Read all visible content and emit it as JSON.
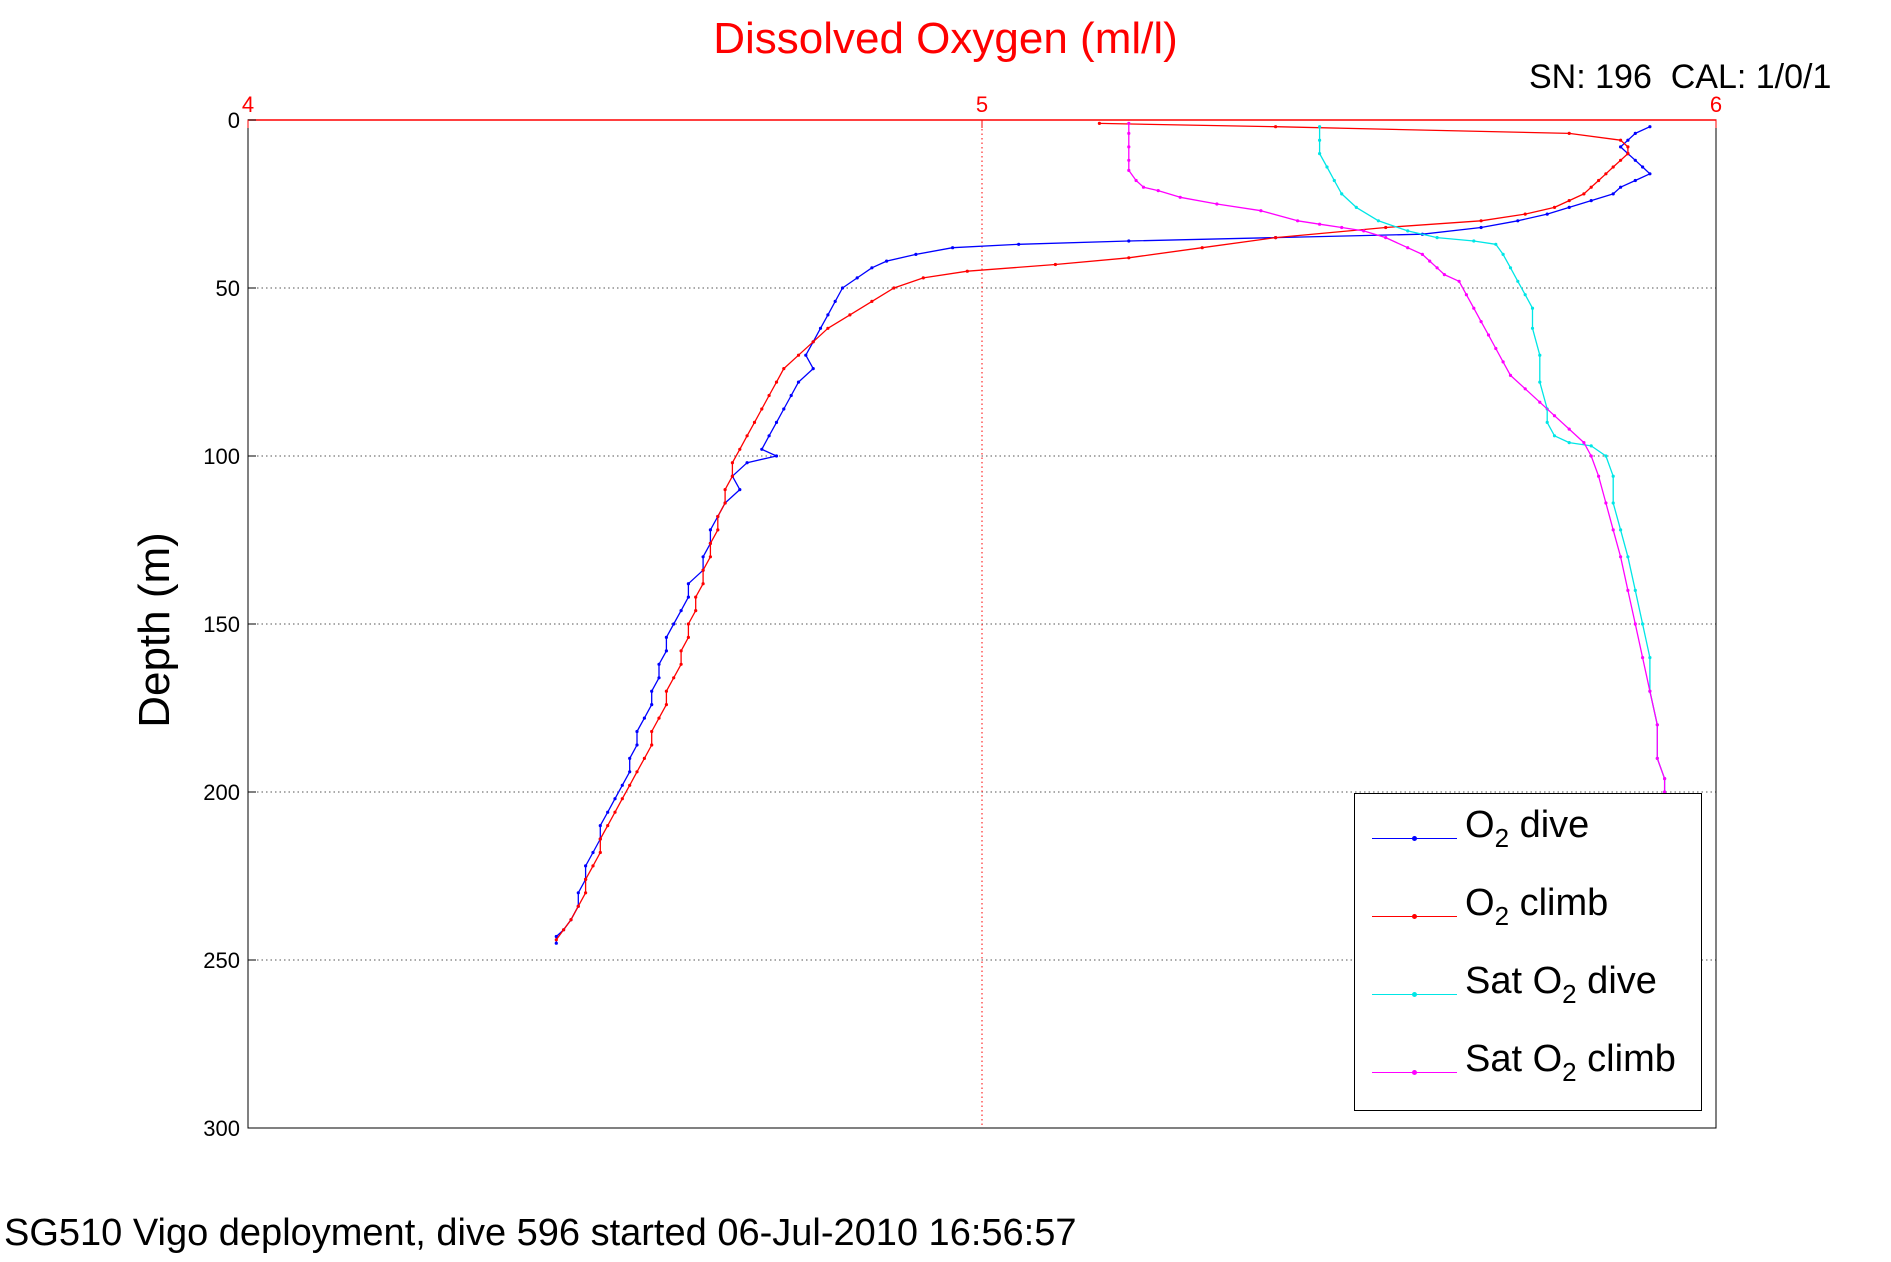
{
  "figure": {
    "title": "Dissolved Oxygen (ml/l)",
    "sn_cal": "SN: 196  CAL: 1/0/1",
    "footer": "SG510 Vigo deployment, dive 596 started 06-Jul-2010 16:56:57"
  },
  "chart_data": {
    "type": "line",
    "title": "Dissolved Oxygen (ml/l)",
    "xlabel": "Dissolved Oxygen (ml/l)",
    "ylabel": "Depth (m)",
    "x_axis_position": "top",
    "y_axis_reversed": true,
    "xlim": [
      4,
      6
    ],
    "ylim": [
      0,
      300
    ],
    "xticks": [
      "4",
      "5",
      "6"
    ],
    "xtick_values": [
      4,
      5,
      6
    ],
    "yticks": [
      "0",
      "50",
      "100",
      "150",
      "200",
      "250",
      "300"
    ],
    "ytick_values": [
      0,
      50,
      100,
      150,
      200,
      250,
      300
    ],
    "grid": true,
    "legend_position": "bottom-right",
    "colors": {
      "axis_x": "#ff0000",
      "axis_y": "#000000",
      "grid_x": "#ff0000",
      "grid_y": "#555555"
    },
    "series": [
      {
        "name": "O2 dive",
        "legend": {
          "pre": "O",
          "sub": "2",
          "post": " dive"
        },
        "color": "#0000ff",
        "points": [
          [
            5.91,
            2
          ],
          [
            5.89,
            4
          ],
          [
            5.88,
            6
          ],
          [
            5.87,
            8
          ],
          [
            5.88,
            10
          ],
          [
            5.89,
            12
          ],
          [
            5.9,
            14
          ],
          [
            5.91,
            16
          ],
          [
            5.89,
            18
          ],
          [
            5.87,
            20
          ],
          [
            5.86,
            22
          ],
          [
            5.83,
            24
          ],
          [
            5.8,
            26
          ],
          [
            5.77,
            28
          ],
          [
            5.73,
            30
          ],
          [
            5.68,
            32
          ],
          [
            5.6,
            34
          ],
          [
            5.4,
            35
          ],
          [
            5.2,
            36
          ],
          [
            5.05,
            37
          ],
          [
            4.96,
            38
          ],
          [
            4.91,
            40
          ],
          [
            4.87,
            42
          ],
          [
            4.85,
            44
          ],
          [
            4.83,
            47
          ],
          [
            4.81,
            50
          ],
          [
            4.8,
            54
          ],
          [
            4.79,
            58
          ],
          [
            4.78,
            62
          ],
          [
            4.77,
            66
          ],
          [
            4.76,
            70
          ],
          [
            4.77,
            74
          ],
          [
            4.75,
            78
          ],
          [
            4.74,
            82
          ],
          [
            4.73,
            86
          ],
          [
            4.72,
            90
          ],
          [
            4.71,
            94
          ],
          [
            4.7,
            98
          ],
          [
            4.72,
            100
          ],
          [
            4.68,
            102
          ],
          [
            4.66,
            106
          ],
          [
            4.67,
            110
          ],
          [
            4.65,
            114
          ],
          [
            4.64,
            118
          ],
          [
            4.63,
            122
          ],
          [
            4.63,
            126
          ],
          [
            4.62,
            130
          ],
          [
            4.62,
            134
          ],
          [
            4.6,
            138
          ],
          [
            4.6,
            142
          ],
          [
            4.59,
            146
          ],
          [
            4.58,
            150
          ],
          [
            4.57,
            154
          ],
          [
            4.57,
            158
          ],
          [
            4.56,
            162
          ],
          [
            4.56,
            166
          ],
          [
            4.55,
            170
          ],
          [
            4.55,
            174
          ],
          [
            4.54,
            178
          ],
          [
            4.53,
            182
          ],
          [
            4.53,
            186
          ],
          [
            4.52,
            190
          ],
          [
            4.52,
            194
          ],
          [
            4.51,
            198
          ],
          [
            4.5,
            202
          ],
          [
            4.49,
            206
          ],
          [
            4.48,
            210
          ],
          [
            4.48,
            214
          ],
          [
            4.47,
            218
          ],
          [
            4.46,
            222
          ],
          [
            4.46,
            226
          ],
          [
            4.45,
            230
          ],
          [
            4.45,
            234
          ],
          [
            4.44,
            238
          ],
          [
            4.43,
            241
          ],
          [
            4.42,
            243
          ],
          [
            4.42,
            245
          ]
        ]
      },
      {
        "name": "O2 climb",
        "legend": {
          "pre": "O",
          "sub": "2",
          "post": " climb"
        },
        "color": "#ff0000",
        "points": [
          [
            4.42,
            244
          ],
          [
            4.43,
            241
          ],
          [
            4.44,
            238
          ],
          [
            4.45,
            234
          ],
          [
            4.46,
            230
          ],
          [
            4.46,
            226
          ],
          [
            4.47,
            222
          ],
          [
            4.48,
            218
          ],
          [
            4.48,
            214
          ],
          [
            4.49,
            210
          ],
          [
            4.5,
            206
          ],
          [
            4.51,
            202
          ],
          [
            4.52,
            198
          ],
          [
            4.53,
            194
          ],
          [
            4.54,
            190
          ],
          [
            4.55,
            186
          ],
          [
            4.55,
            182
          ],
          [
            4.56,
            178
          ],
          [
            4.57,
            174
          ],
          [
            4.57,
            170
          ],
          [
            4.58,
            166
          ],
          [
            4.59,
            162
          ],
          [
            4.59,
            158
          ],
          [
            4.6,
            154
          ],
          [
            4.6,
            150
          ],
          [
            4.61,
            146
          ],
          [
            4.61,
            142
          ],
          [
            4.62,
            138
          ],
          [
            4.62,
            134
          ],
          [
            4.63,
            130
          ],
          [
            4.63,
            126
          ],
          [
            4.64,
            122
          ],
          [
            4.64,
            118
          ],
          [
            4.65,
            114
          ],
          [
            4.65,
            110
          ],
          [
            4.66,
            106
          ],
          [
            4.66,
            102
          ],
          [
            4.67,
            98
          ],
          [
            4.68,
            94
          ],
          [
            4.69,
            90
          ],
          [
            4.7,
            86
          ],
          [
            4.71,
            82
          ],
          [
            4.72,
            78
          ],
          [
            4.73,
            74
          ],
          [
            4.75,
            70
          ],
          [
            4.77,
            66
          ],
          [
            4.79,
            62
          ],
          [
            4.82,
            58
          ],
          [
            4.85,
            54
          ],
          [
            4.88,
            50
          ],
          [
            4.92,
            47
          ],
          [
            4.98,
            45
          ],
          [
            5.1,
            43
          ],
          [
            5.2,
            41
          ],
          [
            5.3,
            38
          ],
          [
            5.4,
            35
          ],
          [
            5.55,
            32
          ],
          [
            5.68,
            30
          ],
          [
            5.74,
            28
          ],
          [
            5.78,
            26
          ],
          [
            5.8,
            24
          ],
          [
            5.82,
            22
          ],
          [
            5.83,
            20
          ],
          [
            5.84,
            18
          ],
          [
            5.85,
            16
          ],
          [
            5.86,
            14
          ],
          [
            5.87,
            12
          ],
          [
            5.88,
            10
          ],
          [
            5.88,
            8
          ],
          [
            5.87,
            6
          ],
          [
            5.8,
            4
          ],
          [
            5.4,
            2
          ],
          [
            5.16,
            1
          ]
        ]
      },
      {
        "name": "Sat O2 dive",
        "legend": {
          "pre": "Sat O",
          "sub": "2",
          "post": " dive"
        },
        "color": "#00e6e6",
        "points": [
          [
            5.46,
            2
          ],
          [
            5.46,
            6
          ],
          [
            5.46,
            10
          ],
          [
            5.47,
            14
          ],
          [
            5.48,
            18
          ],
          [
            5.49,
            22
          ],
          [
            5.51,
            26
          ],
          [
            5.54,
            30
          ],
          [
            5.58,
            33
          ],
          [
            5.62,
            35
          ],
          [
            5.67,
            36
          ],
          [
            5.7,
            37
          ],
          [
            5.71,
            40
          ],
          [
            5.72,
            44
          ],
          [
            5.73,
            48
          ],
          [
            5.74,
            52
          ],
          [
            5.75,
            56
          ],
          [
            5.75,
            62
          ],
          [
            5.76,
            70
          ],
          [
            5.76,
            78
          ],
          [
            5.77,
            86
          ],
          [
            5.77,
            90
          ],
          [
            5.78,
            94
          ],
          [
            5.8,
            96
          ],
          [
            5.83,
            97
          ],
          [
            5.85,
            100
          ],
          [
            5.86,
            106
          ],
          [
            5.86,
            114
          ],
          [
            5.87,
            122
          ],
          [
            5.88,
            130
          ],
          [
            5.89,
            140
          ],
          [
            5.9,
            150
          ],
          [
            5.91,
            160
          ],
          [
            5.91,
            170
          ],
          [
            5.92,
            180
          ],
          [
            5.92,
            190
          ],
          [
            5.93,
            196
          ],
          [
            5.93,
            200
          ]
        ]
      },
      {
        "name": "Sat O2 climb",
        "legend": {
          "pre": "Sat O",
          "sub": "2",
          "post": " climb"
        },
        "color": "#ff00ff",
        "points": [
          [
            5.93,
            200
          ],
          [
            5.93,
            196
          ],
          [
            5.92,
            190
          ],
          [
            5.92,
            180
          ],
          [
            5.91,
            170
          ],
          [
            5.9,
            160
          ],
          [
            5.89,
            150
          ],
          [
            5.88,
            140
          ],
          [
            5.87,
            130
          ],
          [
            5.86,
            122
          ],
          [
            5.85,
            114
          ],
          [
            5.84,
            106
          ],
          [
            5.83,
            100
          ],
          [
            5.82,
            96
          ],
          [
            5.8,
            92
          ],
          [
            5.78,
            88
          ],
          [
            5.76,
            84
          ],
          [
            5.74,
            80
          ],
          [
            5.72,
            76
          ],
          [
            5.71,
            72
          ],
          [
            5.7,
            68
          ],
          [
            5.69,
            64
          ],
          [
            5.68,
            60
          ],
          [
            5.67,
            56
          ],
          [
            5.66,
            52
          ],
          [
            5.65,
            48
          ],
          [
            5.63,
            46
          ],
          [
            5.62,
            44
          ],
          [
            5.61,
            42
          ],
          [
            5.6,
            40
          ],
          [
            5.58,
            38
          ],
          [
            5.55,
            35
          ],
          [
            5.52,
            33
          ],
          [
            5.49,
            32
          ],
          [
            5.46,
            31
          ],
          [
            5.43,
            30
          ],
          [
            5.38,
            27
          ],
          [
            5.32,
            25
          ],
          [
            5.27,
            23
          ],
          [
            5.24,
            21
          ],
          [
            5.22,
            20
          ],
          [
            5.21,
            18
          ],
          [
            5.2,
            15
          ],
          [
            5.2,
            12
          ],
          [
            5.2,
            8
          ],
          [
            5.2,
            4
          ],
          [
            5.2,
            1
          ]
        ]
      }
    ]
  }
}
